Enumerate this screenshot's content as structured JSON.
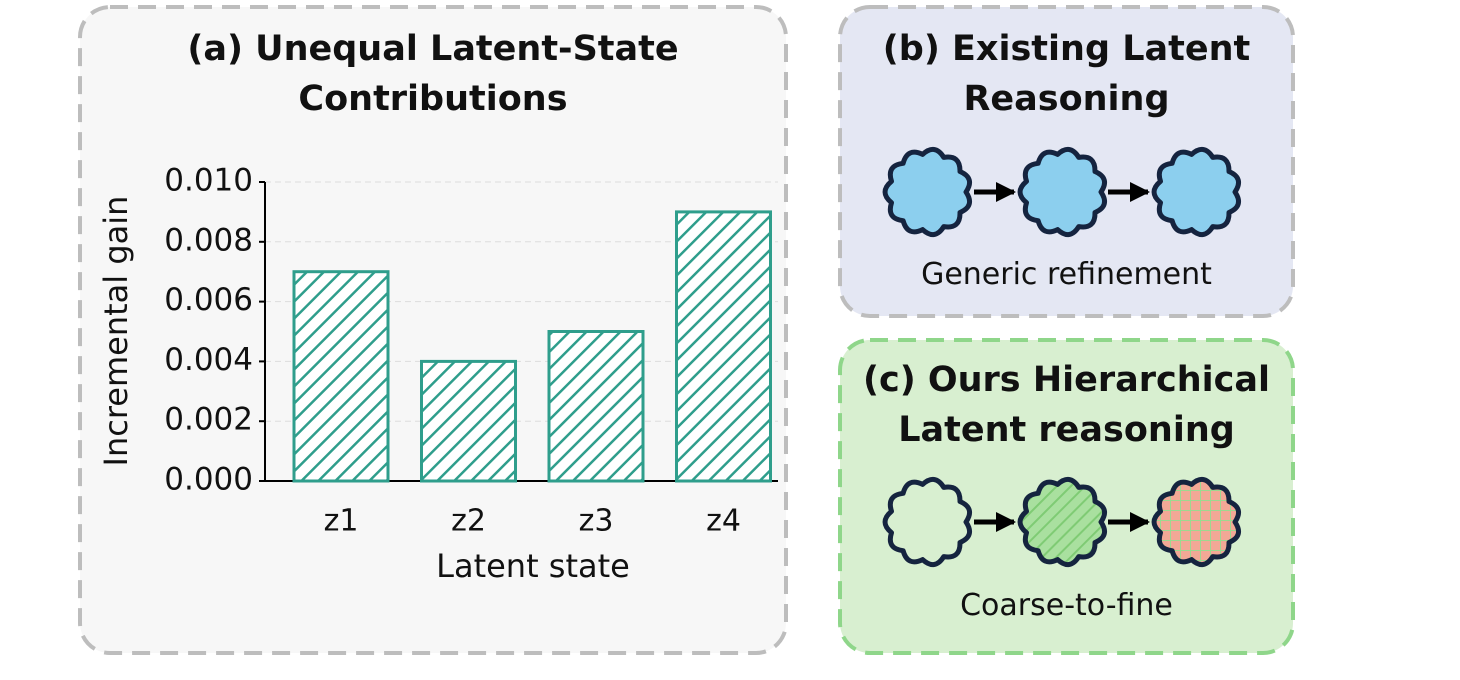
{
  "chart_data": {
    "type": "bar",
    "title": "(a) Unequal Latent-State Contributions",
    "x_label": "Latent state",
    "y_label": "Incremental gain",
    "categories": [
      "z1",
      "z2",
      "z3",
      "z4"
    ],
    "values": [
      0.007,
      0.004,
      0.005,
      0.009
    ],
    "color": "#2f9e8c",
    "hatch": true,
    "ylim": [
      0,
      0.01
    ],
    "yticks": [
      {
        "value": 0,
        "label": "0.000"
      },
      {
        "value": 0.002,
        "label": "0.002"
      },
      {
        "value": 0.004,
        "label": "0.004"
      },
      {
        "value": 0.006,
        "label": "0.006"
      },
      {
        "value": 0.008,
        "label": "0.008"
      },
      {
        "value": 0.01,
        "label": "0.010"
      }
    ],
    "grid": true
  },
  "panel_b": {
    "title": "(b) Existing Latent Reasoning",
    "caption": "Generic refinement"
  },
  "panel_c": {
    "title": "(c) Ours Hierarchical Latent reasoning",
    "caption": "Coarse-to-fine"
  }
}
